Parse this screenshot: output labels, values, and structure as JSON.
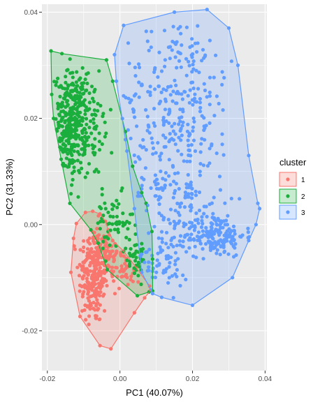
{
  "chart_data": {
    "type": "scatter",
    "title": "",
    "xlabel": "PC1 (40.07%)",
    "ylabel": "PC2 (31.33%)",
    "xlim": [
      -0.0215,
      0.0405
    ],
    "ylim": [
      -0.0275,
      0.0415
    ],
    "x_ticks": [
      -0.02,
      0.0,
      0.02,
      0.04
    ],
    "x_tick_labels": [
      "-0.02",
      "0.00",
      "0.02",
      "0.04"
    ],
    "y_ticks": [
      -0.02,
      0.0,
      0.02,
      0.04
    ],
    "y_tick_labels": [
      "-0.02",
      "0.00",
      "0.02",
      "0.04"
    ],
    "grid": true,
    "legend": {
      "title": "cluster",
      "position": "right",
      "entries": [
        "1",
        "2",
        "3"
      ]
    },
    "colors": {
      "1": "#F8766D",
      "2": "#1AAE3C",
      "3": "#619CFF",
      "panel_background": "#EBEBEB",
      "grid": "#FFFFFF"
    },
    "series": [
      {
        "name": "1",
        "hull": [
          [
            -0.0095,
            0.0023
          ],
          [
            -0.0075,
            0.0025
          ],
          [
            -0.0055,
            0.002
          ],
          [
            -0.004,
            0.0006
          ],
          [
            -0.0032,
            -0.001
          ],
          [
            -0.002,
            -0.003
          ],
          [
            0.001,
            -0.005
          ],
          [
            0.0044,
            -0.008
          ],
          [
            0.0082,
            -0.0116
          ],
          [
            0.0083,
            -0.0125
          ],
          [
            0.0068,
            -0.0138
          ],
          [
            0.004,
            -0.0166
          ],
          [
            -0.0025,
            -0.0234
          ],
          [
            -0.0055,
            -0.0228
          ],
          [
            -0.011,
            -0.0173
          ],
          [
            -0.0135,
            -0.009
          ],
          [
            -0.0128,
            -0.0026
          ],
          [
            -0.012,
            0.0002
          ]
        ],
        "clusters": [
          {
            "cx": -0.0072,
            "cy": -0.0095,
            "sx": 0.0021,
            "sy": 0.0048,
            "n": 240
          },
          {
            "cx": -0.0035,
            "cy": -0.006,
            "sx": 0.0022,
            "sy": 0.002,
            "n": 60
          },
          {
            "cx": 0.002,
            "cy": -0.0085,
            "sx": 0.002,
            "sy": 0.0018,
            "n": 30
          }
        ]
      },
      {
        "name": "2",
        "hull": [
          [
            -0.019,
            0.0327
          ],
          [
            -0.016,
            0.0322
          ],
          [
            -0.0037,
            0.031
          ],
          [
            -0.002,
            0.027
          ],
          [
            0.0015,
            0.0175
          ],
          [
            0.0035,
            0.011
          ],
          [
            0.006,
            0.006
          ],
          [
            0.0072,
            0.004
          ],
          [
            0.0088,
            -0.0013
          ],
          [
            0.009,
            -0.0065
          ],
          [
            0.009,
            -0.0125
          ],
          [
            0.008,
            -0.0127
          ],
          [
            0.0048,
            -0.0134
          ],
          [
            -0.0035,
            -0.0085
          ],
          [
            -0.006,
            -0.0035
          ],
          [
            -0.008,
            -0.001
          ],
          [
            -0.0138,
            0.004
          ],
          [
            -0.0162,
            0.0123
          ],
          [
            -0.0183,
            0.02
          ],
          [
            -0.0188,
            0.0245
          ]
        ],
        "clusters": [
          {
            "cx": -0.0135,
            "cy": 0.019,
            "sx": 0.0022,
            "sy": 0.0048,
            "n": 320
          },
          {
            "cx": -0.008,
            "cy": 0.018,
            "sx": 0.003,
            "sy": 0.005,
            "n": 70
          },
          {
            "cx": -0.002,
            "cy": 0.0,
            "sx": 0.0028,
            "sy": 0.0028,
            "n": 60
          },
          {
            "cx": 0.004,
            "cy": -0.006,
            "sx": 0.002,
            "sy": 0.002,
            "n": 40
          }
        ]
      },
      {
        "name": "3",
        "hull": [
          [
            0.001,
            0.0375
          ],
          [
            0.015,
            0.04
          ],
          [
            0.024,
            0.0405
          ],
          [
            0.03,
            0.037
          ],
          [
            0.0325,
            0.03
          ],
          [
            0.0355,
            0.013
          ],
          [
            0.038,
            0.004
          ],
          [
            0.0385,
            0.003
          ],
          [
            0.0375,
            0.0
          ],
          [
            0.0355,
            -0.003
          ],
          [
            0.031,
            -0.01
          ],
          [
            0.02,
            -0.0152
          ],
          [
            0.0115,
            -0.0137
          ],
          [
            0.009,
            -0.013
          ],
          [
            0.006,
            -0.009
          ],
          [
            0.004,
            0.003
          ],
          [
            0.0015,
            0.016
          ],
          [
            -0.001,
            0.027
          ],
          [
            -0.0015,
            0.032
          ]
        ],
        "clusters": [
          {
            "cx": 0.026,
            "cy": -0.002,
            "sx": 0.0042,
            "sy": 0.002,
            "n": 180
          },
          {
            "cx": 0.016,
            "cy": 0.024,
            "sx": 0.0075,
            "sy": 0.008,
            "n": 260
          },
          {
            "cx": 0.015,
            "cy": 0.005,
            "sx": 0.007,
            "sy": 0.006,
            "n": 130
          },
          {
            "cx": 0.011,
            "cy": -0.007,
            "sx": 0.004,
            "sy": 0.003,
            "n": 60
          }
        ]
      }
    ]
  }
}
